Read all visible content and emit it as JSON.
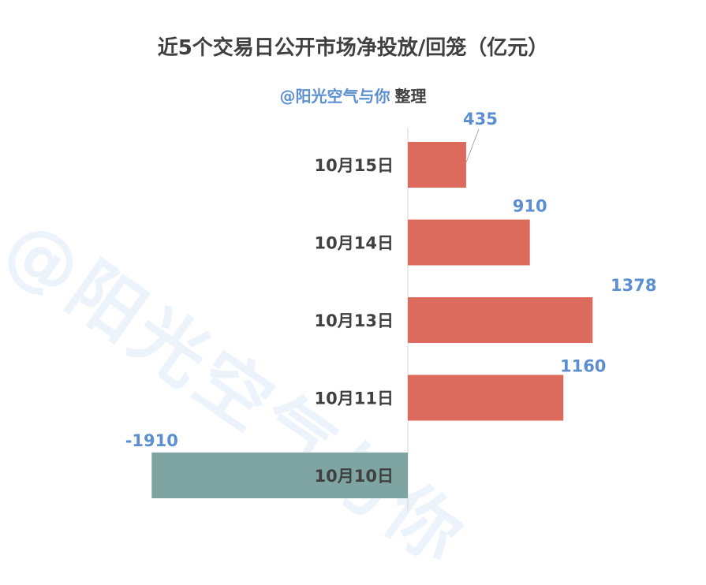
{
  "watermark": "@阳光空气与你",
  "chart_data": {
    "type": "bar",
    "orientation": "horizontal",
    "title": "近5个交易日公开市场净投放/回笼（亿元）",
    "subtitle_handle": "@阳光空气与你",
    "subtitle_suffix": "整理",
    "categories": [
      "10月15日",
      "10月14日",
      "10月13日",
      "10月11日",
      "10月10日"
    ],
    "values": [
      435,
      910,
      1378,
      1160,
      -1910
    ],
    "data_labels": [
      "435",
      "910",
      "1378",
      "1160",
      "-1910"
    ],
    "xlim": [
      -1910,
      1910
    ],
    "grid": false,
    "legend": "none",
    "colors": {
      "positive": "#dc6b5d",
      "negative": "#7fa5a2",
      "label": "#5b8fd1",
      "category": "#404040",
      "axis": "#d9d9d9",
      "leader": "#a6a6a6"
    }
  }
}
